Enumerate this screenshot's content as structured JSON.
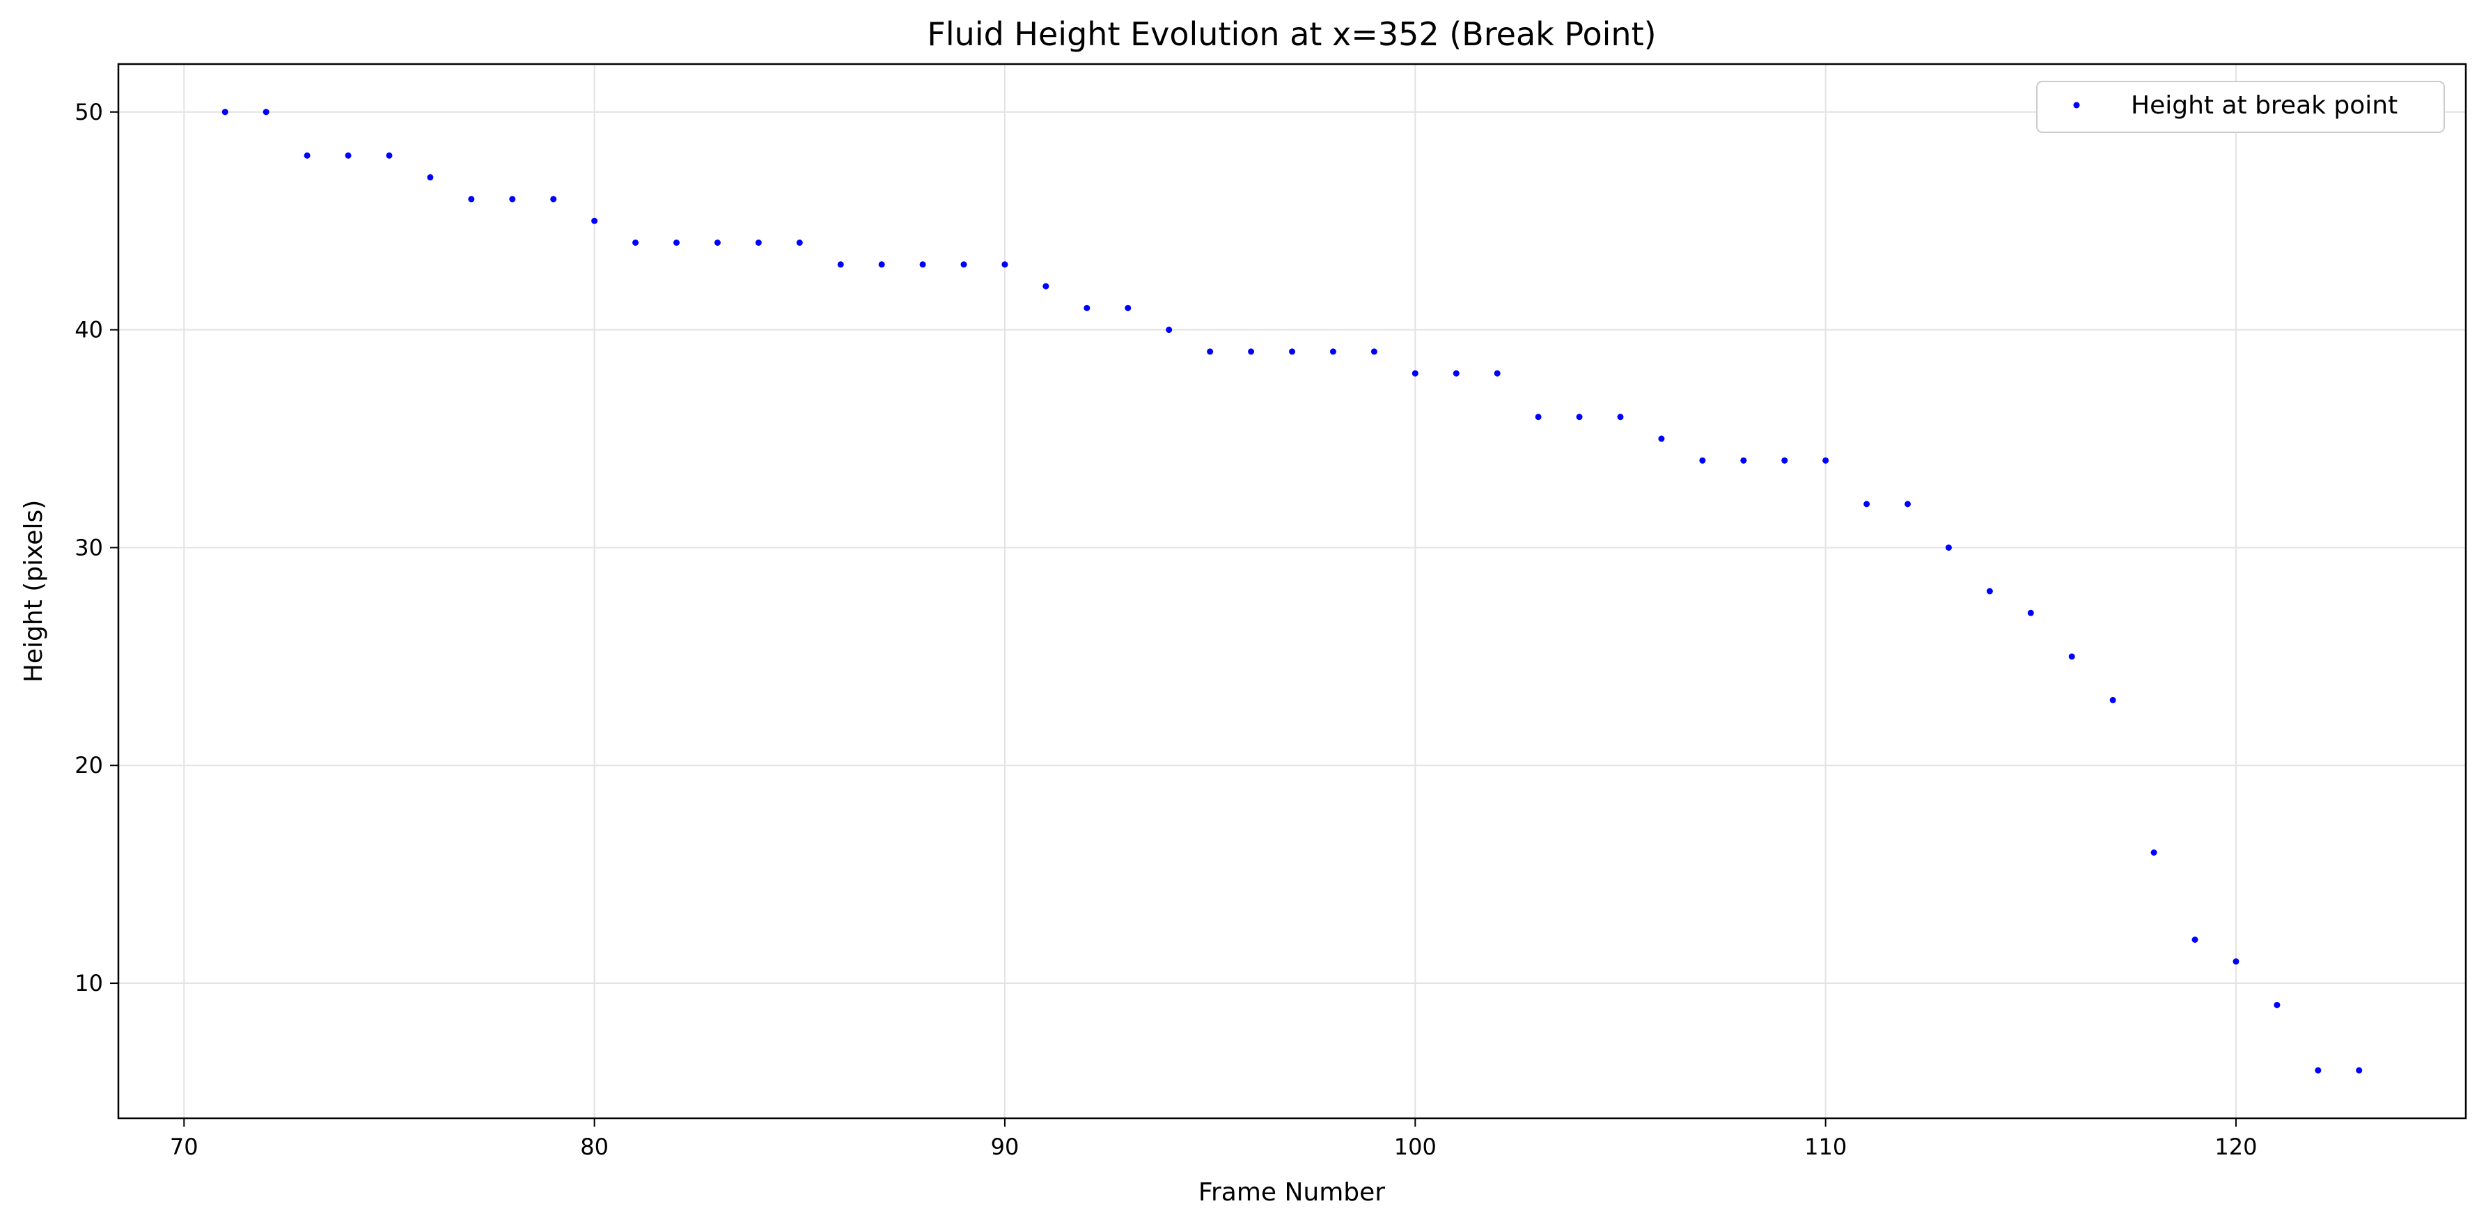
{
  "chart_data": {
    "type": "scatter",
    "title": "Fluid Height Evolution at x=352 (Break Point)",
    "xlabel": "Frame Number",
    "ylabel": "Height (pixels)",
    "xlim": [
      68.4,
      125.6
    ],
    "ylim": [
      3.8,
      52.2
    ],
    "xticks": [
      70,
      80,
      90,
      100,
      110,
      120
    ],
    "yticks": [
      10,
      20,
      30,
      40,
      50
    ],
    "grid": true,
    "legend_position": "top-right",
    "series": [
      {
        "name": "Height at break point",
        "color": "#0000ff",
        "x": [
          71,
          72,
          73,
          74,
          75,
          76,
          77,
          78,
          79,
          80,
          81,
          82,
          83,
          84,
          85,
          86,
          87,
          88,
          89,
          90,
          91,
          92,
          93,
          94,
          95,
          96,
          97,
          98,
          99,
          100,
          101,
          102,
          103,
          104,
          105,
          106,
          107,
          108,
          109,
          110,
          111,
          112,
          113,
          114,
          115,
          116,
          117,
          118,
          119,
          120,
          121,
          122,
          123
        ],
        "y": [
          50,
          50,
          48,
          48,
          48,
          47,
          46,
          46,
          46,
          45,
          44,
          44,
          44,
          44,
          44,
          43,
          43,
          43,
          43,
          43,
          42,
          41,
          41,
          40,
          39,
          39,
          39,
          39,
          39,
          38,
          38,
          38,
          36,
          36,
          36,
          35,
          34,
          34,
          34,
          34,
          32,
          32,
          30,
          28,
          27,
          25,
          23,
          16,
          12,
          11,
          9,
          6,
          6
        ]
      }
    ]
  }
}
